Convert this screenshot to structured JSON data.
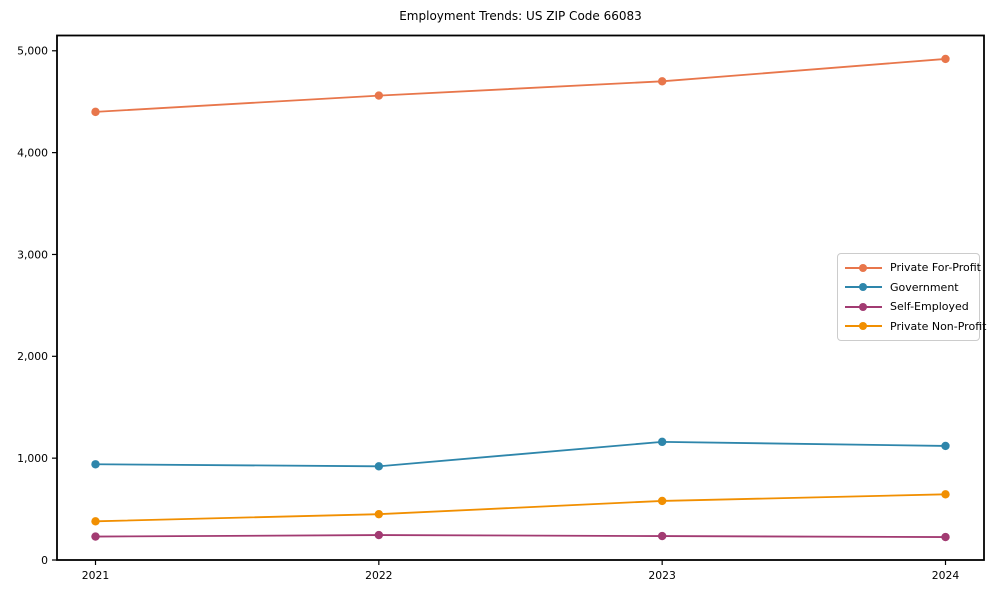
{
  "chart_data": {
    "type": "line",
    "title": "Employment Trends: US ZIP Code 66083",
    "xlabel": "",
    "ylabel": "",
    "x": [
      2021,
      2022,
      2023,
      2024
    ],
    "x_tick_labels": [
      "2021",
      "2022",
      "2023",
      "2024"
    ],
    "y_ticks": [
      0,
      1000,
      2000,
      3000,
      4000,
      5000
    ],
    "y_tick_labels": [
      "0",
      "1,000",
      "2,000",
      "3,000",
      "4,000",
      "5,000"
    ],
    "ylim": [
      0,
      5150
    ],
    "grid": false,
    "legend_position": "center-right",
    "background_color": "#ffffff",
    "axis_color": "#000000",
    "legend_border_color": "#cccccc",
    "series": [
      {
        "name": "Private For-Profit",
        "color": "#E8764B",
        "marker": "circle",
        "values": [
          4400,
          4560,
          4700,
          4920
        ]
      },
      {
        "name": "Government",
        "color": "#2E86AB",
        "marker": "circle",
        "values": [
          940,
          920,
          1160,
          1120
        ]
      },
      {
        "name": "Self-Employed",
        "color": "#A23B72",
        "marker": "circle",
        "values": [
          230,
          245,
          235,
          225
        ]
      },
      {
        "name": "Private Non-Profit",
        "color": "#F18F01",
        "marker": "circle",
        "values": [
          380,
          450,
          580,
          645
        ]
      }
    ]
  }
}
